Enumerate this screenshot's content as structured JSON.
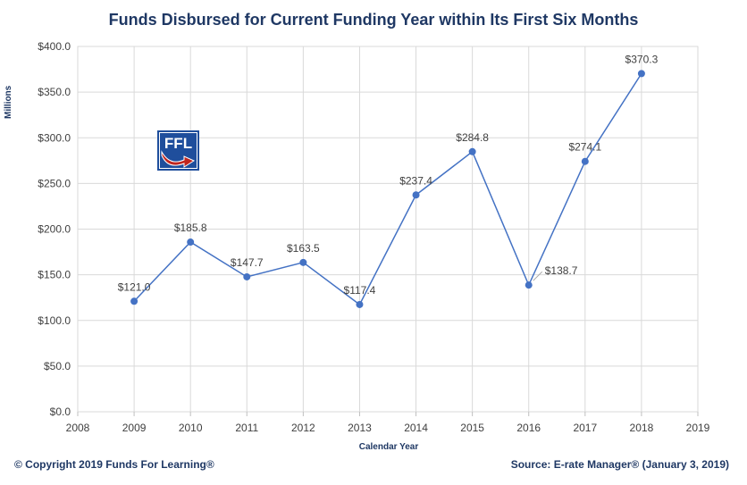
{
  "header": {
    "title": "Funds Disbursed for Current Funding Year within Its First Six Months"
  },
  "footer": {
    "copyright": "© Copyright 2019 Funds For Learning®",
    "source": "Source: E-rate Manager® (January 3, 2019)"
  },
  "logo": {
    "text": "FFL",
    "colors": {
      "navy": "#1f4e9c",
      "red": "#c0261f"
    }
  },
  "chart_data": {
    "type": "line",
    "xlabel": "Calendar Year",
    "ylabel": "Millions",
    "x": [
      2009,
      2010,
      2011,
      2012,
      2013,
      2014,
      2015,
      2016,
      2017,
      2018
    ],
    "values": [
      121.0,
      185.8,
      147.7,
      163.5,
      117.4,
      237.4,
      284.8,
      138.7,
      274.1,
      370.3
    ],
    "data_labels": [
      "$121.0",
      "$185.8",
      "$147.7",
      "$163.5",
      "$117.4",
      "$237.4",
      "$284.8",
      "$138.7",
      "$274.1",
      "$370.3"
    ],
    "xlim": [
      2008,
      2019
    ],
    "x_ticks": [
      "2008",
      "2009",
      "2010",
      "2011",
      "2012",
      "2013",
      "2014",
      "2015",
      "2016",
      "2017",
      "2018",
      "2019"
    ],
    "ylim": [
      0,
      400
    ],
    "y_ticks": [
      "$0.0",
      "$50.0",
      "$100.0",
      "$150.0",
      "$200.0",
      "$250.0",
      "$300.0",
      "$350.0",
      "$400.0"
    ],
    "grid": true,
    "line_color": "#4472c4"
  }
}
